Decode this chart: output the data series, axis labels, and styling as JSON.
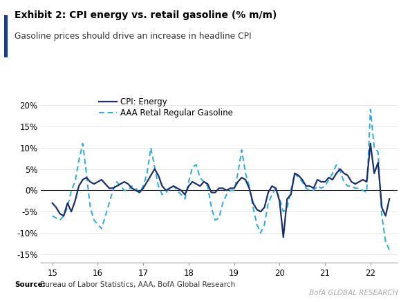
{
  "title": "Exhibit 2: CPI energy vs. retail gasoline (% m/m)",
  "subtitle": "Gasoline prices should drive an increase in headline CPI",
  "watermark": "BofA GLOBAL RESEARCH",
  "legend": [
    "CPI: Energy",
    "AAA Retal Regular Gasoline"
  ],
  "cpi_color": "#1a2e6b",
  "aaa_color": "#29abe2",
  "ylim": [
    -0.17,
    0.22
  ],
  "yticks": [
    -0.15,
    -0.1,
    -0.05,
    0.0,
    0.05,
    0.1,
    0.15,
    0.2
  ],
  "ytick_labels": [
    "-15%",
    "-10%",
    "-5%",
    "0%",
    "5%",
    "10%",
    "15%",
    "20%"
  ],
  "xticks": [
    15,
    16,
    17,
    18,
    19,
    20,
    21,
    22
  ],
  "xlim": [
    14.75,
    22.6
  ],
  "cpi_x": [
    15.0,
    15.083,
    15.167,
    15.25,
    15.333,
    15.417,
    15.5,
    15.583,
    15.667,
    15.75,
    15.833,
    15.917,
    16.0,
    16.083,
    16.167,
    16.25,
    16.333,
    16.417,
    16.5,
    16.583,
    16.667,
    16.75,
    16.833,
    16.917,
    17.0,
    17.083,
    17.167,
    17.25,
    17.333,
    17.417,
    17.5,
    17.583,
    17.667,
    17.75,
    17.833,
    17.917,
    18.0,
    18.083,
    18.167,
    18.25,
    18.333,
    18.417,
    18.5,
    18.583,
    18.667,
    18.75,
    18.833,
    18.917,
    19.0,
    19.083,
    19.167,
    19.25,
    19.333,
    19.417,
    19.5,
    19.583,
    19.667,
    19.75,
    19.833,
    19.917,
    20.0,
    20.083,
    20.167,
    20.25,
    20.333,
    20.417,
    20.5,
    20.583,
    20.667,
    20.75,
    20.833,
    20.917,
    21.0,
    21.083,
    21.167,
    21.25,
    21.333,
    21.417,
    21.5,
    21.583,
    21.667,
    21.75,
    21.833,
    21.917,
    22.0,
    22.083,
    22.167,
    22.25,
    22.333,
    22.417
  ],
  "cpi_y": [
    -0.03,
    -0.04,
    -0.055,
    -0.06,
    -0.03,
    -0.05,
    -0.025,
    0.01,
    0.025,
    0.03,
    0.02,
    0.015,
    0.02,
    0.025,
    0.015,
    0.005,
    0.005,
    0.01,
    0.015,
    0.02,
    0.015,
    0.005,
    0.0,
    -0.005,
    0.005,
    0.02,
    0.035,
    0.05,
    0.035,
    0.01,
    0.0,
    0.005,
    0.01,
    0.005,
    0.0,
    -0.01,
    0.01,
    0.02,
    0.015,
    0.01,
    0.02,
    0.015,
    -0.005,
    -0.005,
    0.005,
    0.005,
    0.0,
    0.005,
    0.005,
    0.02,
    0.03,
    0.025,
    0.005,
    -0.03,
    -0.045,
    -0.05,
    -0.04,
    -0.005,
    0.01,
    0.005,
    -0.025,
    -0.11,
    -0.02,
    -0.01,
    0.04,
    0.035,
    0.025,
    0.01,
    0.01,
    0.005,
    0.025,
    0.02,
    0.02,
    0.03,
    0.025,
    0.04,
    0.05,
    0.04,
    0.035,
    0.02,
    0.015,
    0.02,
    0.025,
    0.02,
    0.11,
    0.04,
    0.065,
    -0.04,
    -0.06,
    -0.02
  ],
  "aaa_x": [
    15.0,
    15.083,
    15.167,
    15.25,
    15.333,
    15.417,
    15.5,
    15.583,
    15.667,
    15.75,
    15.833,
    15.917,
    16.0,
    16.083,
    16.167,
    16.25,
    16.333,
    16.417,
    16.5,
    16.583,
    16.667,
    16.75,
    16.833,
    16.917,
    17.0,
    17.083,
    17.167,
    17.25,
    17.333,
    17.417,
    17.5,
    17.583,
    17.667,
    17.75,
    17.833,
    17.917,
    18.0,
    18.083,
    18.167,
    18.25,
    18.333,
    18.417,
    18.5,
    18.583,
    18.667,
    18.75,
    18.833,
    18.917,
    19.0,
    19.083,
    19.167,
    19.25,
    19.333,
    19.417,
    19.5,
    19.583,
    19.667,
    19.75,
    19.833,
    19.917,
    20.0,
    20.083,
    20.167,
    20.25,
    20.333,
    20.417,
    20.5,
    20.583,
    20.667,
    20.75,
    20.833,
    20.917,
    21.0,
    21.083,
    21.167,
    21.25,
    21.333,
    21.417,
    21.5,
    21.583,
    21.667,
    21.75,
    21.833,
    21.917,
    22.0,
    22.083,
    22.167,
    22.25,
    22.333,
    22.417
  ],
  "aaa_y": [
    -0.06,
    -0.065,
    -0.07,
    -0.06,
    -0.04,
    0.0,
    0.02,
    0.07,
    0.11,
    0.04,
    -0.04,
    -0.07,
    -0.08,
    -0.09,
    -0.06,
    -0.03,
    0.0,
    0.02,
    0.01,
    0.0,
    0.0,
    0.01,
    0.005,
    -0.005,
    0.01,
    0.04,
    0.1,
    0.055,
    0.01,
    -0.01,
    -0.005,
    0.005,
    0.01,
    0.0,
    -0.01,
    -0.02,
    0.02,
    0.055,
    0.06,
    0.03,
    0.02,
    0.01,
    -0.04,
    -0.07,
    -0.065,
    -0.03,
    -0.01,
    0.0,
    0.0,
    0.04,
    0.095,
    0.04,
    0.01,
    -0.04,
    -0.08,
    -0.1,
    -0.08,
    -0.03,
    -0.01,
    0.005,
    -0.02,
    -0.05,
    -0.04,
    0.0,
    0.04,
    0.03,
    0.02,
    0.005,
    0.0,
    0.0,
    0.01,
    0.005,
    0.01,
    0.025,
    0.04,
    0.06,
    0.045,
    0.02,
    0.01,
    0.01,
    0.005,
    0.005,
    0.0,
    -0.005,
    0.19,
    0.1,
    0.09,
    -0.06,
    -0.12,
    -0.14
  ]
}
